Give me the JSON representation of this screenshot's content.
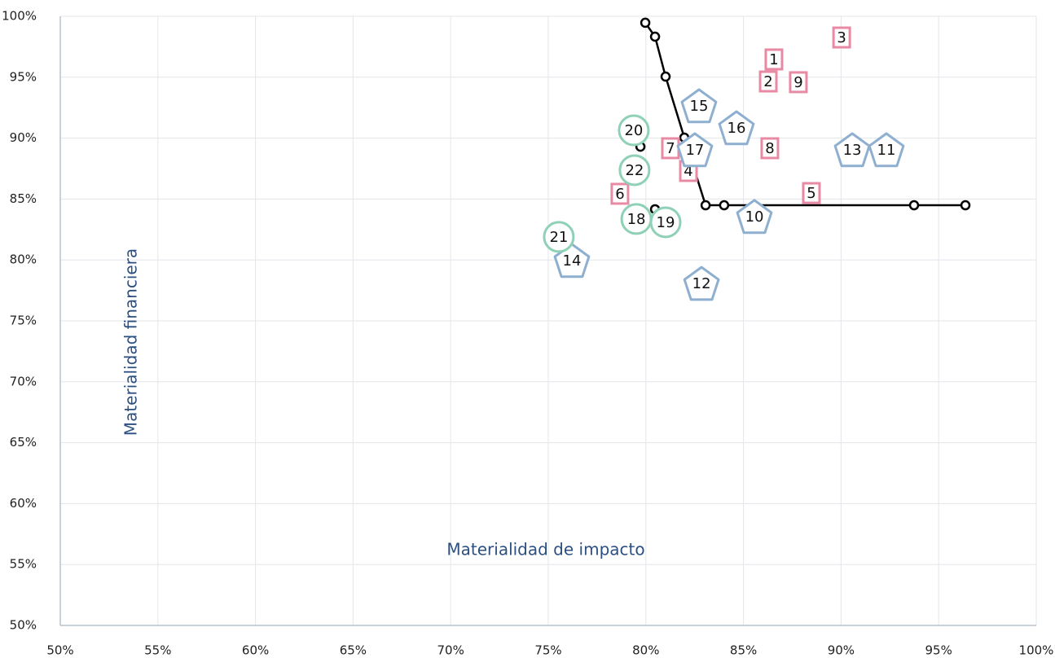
{
  "chart_data": {
    "type": "scatter",
    "xlabel": "Materialidad de impacto",
    "ylabel": "Materialidad financiera",
    "xlim": [
      50,
      100
    ],
    "ylim": [
      50,
      100
    ],
    "xticks": [
      {
        "value": 50,
        "label": "50%"
      },
      {
        "value": 55,
        "label": "55%"
      },
      {
        "value": 60,
        "label": "60%"
      },
      {
        "value": 65,
        "label": "65%"
      },
      {
        "value": 70,
        "label": "70%"
      },
      {
        "value": 75,
        "label": "75%"
      },
      {
        "value": 80,
        "label": "80%"
      },
      {
        "value": 85,
        "label": "85%"
      },
      {
        "value": 90,
        "label": "90%"
      },
      {
        "value": 95,
        "label": "95%"
      },
      {
        "value": 100,
        "label": "100%"
      }
    ],
    "yticks": [
      {
        "value": 50,
        "label": "50%"
      },
      {
        "value": 55,
        "label": "55%"
      },
      {
        "value": 60,
        "label": "60%"
      },
      {
        "value": 65,
        "label": "65%"
      },
      {
        "value": 70,
        "label": "70%"
      },
      {
        "value": 75,
        "label": "75%"
      },
      {
        "value": 80,
        "label": "80%"
      },
      {
        "value": 85,
        "label": "85%"
      },
      {
        "value": 90,
        "label": "90%"
      },
      {
        "value": 95,
        "label": "95%"
      },
      {
        "value": 100,
        "label": "100%"
      }
    ],
    "grid": true,
    "series": [
      {
        "marker": "line",
        "color": "#000000",
        "x": [
          79.97,
          80.47,
          81.01,
          81.97,
          83.06,
          84.01,
          93.74,
          96.37
        ],
        "values": [
          99.47,
          98.33,
          95.05,
          90.04,
          84.49,
          84.49,
          84.49,
          84.49
        ]
      },
      {
        "marker": "dot",
        "color": "#000000",
        "x": [
          79.72,
          80.47
        ],
        "values": [
          89.3,
          84.16
        ]
      },
      {
        "marker": "square",
        "color": "#e88aa3",
        "labels": [
          "1",
          "2",
          "3",
          "4",
          "5",
          "6",
          "7",
          "8",
          "9"
        ],
        "x": [
          86.56,
          86.27,
          90.03,
          82.18,
          88.48,
          78.67,
          81.26,
          86.35,
          87.81
        ],
        "values": [
          96.46,
          94.65,
          98.26,
          87.3,
          85.49,
          85.43,
          89.17,
          89.17,
          94.59
        ]
      },
      {
        "marker": "pentagon",
        "color": "#8eafd0",
        "labels": [
          "10",
          "11",
          "12",
          "13",
          "14",
          "15",
          "16",
          "17"
        ],
        "x": [
          85.56,
          92.32,
          82.85,
          90.57,
          76.21,
          82.72,
          84.64,
          82.51
        ],
        "values": [
          83.56,
          89.04,
          78.07,
          89.04,
          79.95,
          92.65,
          90.84,
          89.04
        ]
      },
      {
        "marker": "circle",
        "color": "#8fd1b6",
        "labels": [
          "18",
          "19",
          "20",
          "21",
          "22"
        ],
        "x": [
          79.51,
          81.01,
          79.38,
          75.54,
          79.42
        ],
        "values": [
          83.36,
          83.09,
          90.64,
          81.89,
          87.37
        ]
      }
    ]
  }
}
